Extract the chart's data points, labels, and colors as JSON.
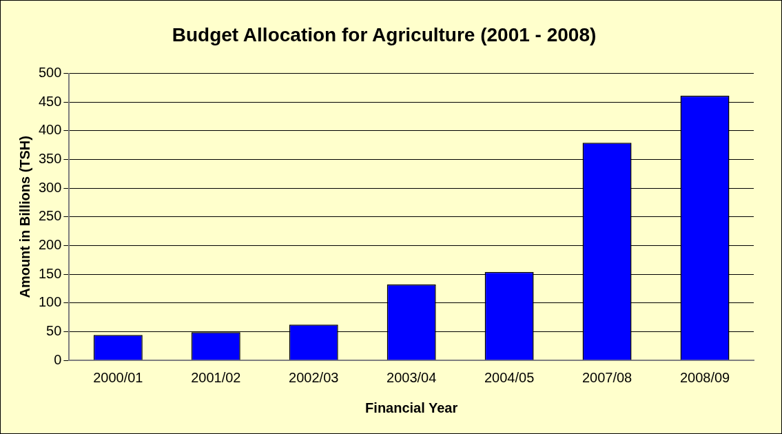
{
  "chart_data": {
    "type": "bar",
    "title": "Budget Allocation for Agriculture (2001 - 2008)",
    "xlabel": "Financial Year",
    "ylabel": "Amount in Billions (TSH)",
    "categories": [
      "2000/01",
      "2001/02",
      "2002/03",
      "2003/04",
      "2004/05",
      "2007/08",
      "2008/09"
    ],
    "values": [
      44,
      49,
      62,
      132,
      154,
      379,
      461
    ],
    "color": "#0000ff",
    "ylim": [
      0,
      500
    ],
    "yticks": [
      0,
      50,
      100,
      150,
      200,
      250,
      300,
      350,
      400,
      450,
      500
    ],
    "grid": "y",
    "legend": false
  }
}
